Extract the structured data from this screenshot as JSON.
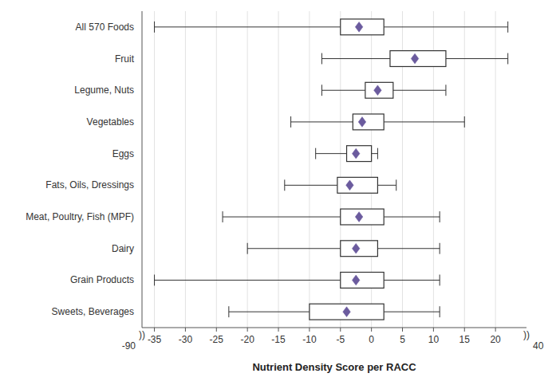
{
  "chart_data": {
    "type": "box",
    "orientation": "horizontal",
    "xlabel": "Nutrient Density Score per RACC",
    "categories": [
      "All 570 Foods",
      "Fruit",
      "Legume, Nuts",
      "Vegetables",
      "Eggs",
      "Fats, Oils, Dressings",
      "Meat, Poultry, Fish (MPF)",
      "Dairy",
      "Grain Products",
      "Sweets, Beverages"
    ],
    "boxes": [
      {
        "min": -35,
        "q1": -5.0,
        "q3": 2.0,
        "max": 22,
        "mean": -2.0
      },
      {
        "min": -8,
        "q1": 3.0,
        "q3": 12.0,
        "max": 22,
        "mean": 7.0
      },
      {
        "min": -8,
        "q1": -1.0,
        "q3": 3.5,
        "max": 12,
        "mean": 1.0
      },
      {
        "min": -13,
        "q1": -3.0,
        "q3": 2.0,
        "max": 15,
        "mean": -1.5
      },
      {
        "min": -9,
        "q1": -4.0,
        "q3": 0.0,
        "max": 1,
        "mean": -2.5
      },
      {
        "min": -14,
        "q1": -5.5,
        "q3": 1.0,
        "max": 4,
        "mean": -3.5
      },
      {
        "min": -24,
        "q1": -5.0,
        "q3": 2.0,
        "max": 11,
        "mean": -2.0
      },
      {
        "min": -20,
        "q1": -5.0,
        "q3": 1.0,
        "max": 11,
        "mean": -2.5
      },
      {
        "min": -35,
        "q1": -5.0,
        "q3": 2.0,
        "max": 11,
        "mean": -2.5
      },
      {
        "min": -23,
        "q1": -10.0,
        "q3": 2.0,
        "max": 11,
        "mean": -4.0
      }
    ],
    "color": "#6b5b9e",
    "xlim": [
      -37,
      25
    ],
    "xticks": [
      -35,
      -30,
      -25,
      -20,
      -15,
      -10,
      -5,
      0,
      5,
      10,
      15,
      20
    ],
    "grid": true,
    "annotations": [
      {
        "text": "))",
        "x": -37
      },
      {
        "text": "))",
        "x": 25
      },
      {
        "text": "-90",
        "x": -37
      },
      {
        "text": "40",
        "x": 25
      }
    ]
  }
}
